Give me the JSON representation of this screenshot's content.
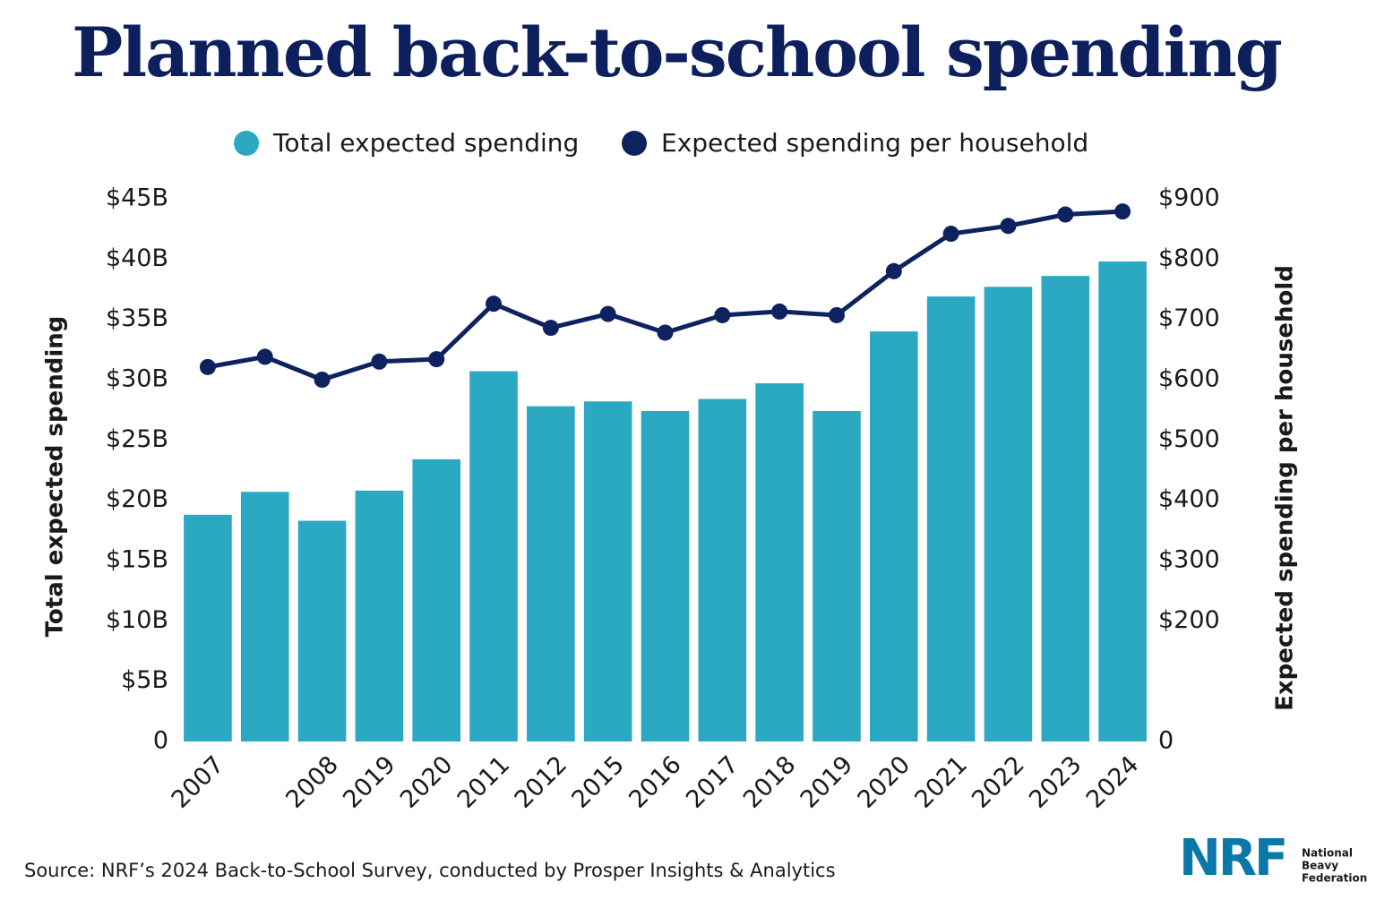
{
  "chart_data": {
    "type": "bar",
    "title": "Planned back-to-school spending",
    "categories": [
      "2007",
      null,
      "2008",
      "2019",
      "2020",
      "2011",
      "2012",
      "2015",
      "2016",
      "2017",
      "2018",
      "2019",
      "2020",
      "2021",
      "2022",
      "2023",
      "2024"
    ],
    "series": [
      {
        "name": "Total expected spending",
        "color": "#2ba8c2",
        "axis": "y",
        "type": "bar",
        "values": [
          18.8,
          20.7,
          18.3,
          20.8,
          23.4,
          30.7,
          27.8,
          28.2,
          27.4,
          28.4,
          29.7,
          27.4,
          34.0,
          36.9,
          37.7,
          38.6,
          39.8
        ]
      },
      {
        "name": "Expected spending per household",
        "color": "#0f2260",
        "axis": "y2",
        "type": "line",
        "values": [
          621,
          638,
          600,
          630,
          634,
          726,
          686,
          709,
          678,
          707,
          713,
          707,
          780,
          842,
          855,
          874,
          879
        ]
      }
    ],
    "ylim": [
      0,
      45
    ],
    "yticks": [
      0,
      {
        "value": 5,
        "label": "$5B"
      },
      {
        "value": 10,
        "label": "$10B"
      },
      {
        "value": 15,
        "label": "$15B"
      },
      {
        "value": 20,
        "label": "$20B"
      },
      {
        "value": 25,
        "label": "$25B"
      },
      {
        "value": 30,
        "label": "$30B"
      },
      {
        "value": 35,
        "label": "$35B"
      },
      {
        "value": 40,
        "label": "$40B"
      },
      {
        "value": 45,
        "label": "$45B"
      }
    ],
    "y2lim": [
      0,
      900
    ],
    "y2ticks": [
      0,
      {
        "value": 200,
        "label": "$200"
      },
      {
        "value": 300,
        "label": "$300"
      },
      {
        "value": 400,
        "label": "$400"
      },
      {
        "value": 500,
        "label": "$500"
      },
      {
        "value": 600,
        "label": "$600"
      },
      {
        "value": 700,
        "label": "$700"
      },
      {
        "value": 800,
        "label": "$800"
      },
      {
        "value": 900,
        "label": "$900"
      }
    ],
    "ylabel": "Total expected spending",
    "y2label": "Expected spending per household",
    "source": "Source: NRF’s 2024 Back-to-School Survey, conducted by Prosper Insights & Analytics"
  },
  "logo": {
    "mark": "NRF",
    "name": [
      "National",
      "Beavy",
      "Federation"
    ]
  }
}
